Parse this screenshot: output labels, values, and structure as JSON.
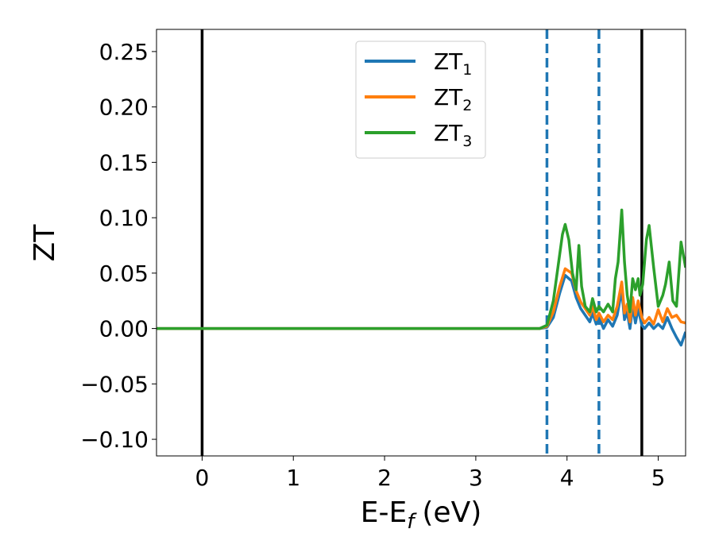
{
  "chart_data": {
    "type": "line",
    "title": "",
    "xlabel": {
      "main": "E-E",
      "sub": "f",
      "unit": "(eV)"
    },
    "ylabel": "ZT",
    "xlim": [
      -0.5,
      5.3
    ],
    "ylim": [
      -0.115,
      0.27
    ],
    "xticks": [
      0,
      1,
      2,
      3,
      4,
      5
    ],
    "xtick_labels": [
      "0",
      "1",
      "2",
      "3",
      "4",
      "5"
    ],
    "yticks": [
      -0.1,
      -0.05,
      0.0,
      0.05,
      0.1,
      0.15,
      0.2,
      0.25
    ],
    "ytick_labels": [
      "−0.10",
      "−0.05",
      "0.00",
      "0.05",
      "0.10",
      "0.15",
      "0.20",
      "0.25"
    ],
    "grid": false,
    "legend_position": "top-center",
    "vlines": [
      {
        "x": 0.0,
        "style": "solid",
        "color": "#000000"
      },
      {
        "x": 4.82,
        "style": "solid",
        "color": "#000000"
      },
      {
        "x": 3.78,
        "style": "dashed",
        "color": "#1f77b4"
      },
      {
        "x": 4.35,
        "style": "dashed",
        "color": "#1f77b4"
      }
    ],
    "series": [
      {
        "name": "ZT",
        "subscript": "1",
        "color": "#1f77b4",
        "x": [
          -0.5,
          3.7,
          3.78,
          3.85,
          3.92,
          3.98,
          4.05,
          4.1,
          4.15,
          4.2,
          4.25,
          4.28,
          4.32,
          4.35,
          4.4,
          4.45,
          4.5,
          4.55,
          4.6,
          4.63,
          4.66,
          4.69,
          4.72,
          4.75,
          4.78,
          4.82,
          4.85,
          4.9,
          4.95,
          5.0,
          5.05,
          5.1,
          5.15,
          5.2,
          5.25,
          5.3
        ],
        "y": [
          0.0,
          0.0,
          0.001,
          0.01,
          0.032,
          0.048,
          0.043,
          0.028,
          0.018,
          0.012,
          0.006,
          0.014,
          0.004,
          0.01,
          0.0,
          0.008,
          0.002,
          0.012,
          0.035,
          0.008,
          0.015,
          0.0,
          0.02,
          0.005,
          0.018,
          0.003,
          0.0,
          0.005,
          0.0,
          0.004,
          0.0,
          0.01,
          0.0,
          -0.008,
          -0.015,
          -0.003
        ]
      },
      {
        "name": "ZT",
        "subscript": "2",
        "color": "#ff7f0e",
        "x": [
          -0.5,
          3.7,
          3.78,
          3.85,
          3.92,
          3.98,
          4.05,
          4.1,
          4.15,
          4.2,
          4.25,
          4.28,
          4.32,
          4.35,
          4.4,
          4.45,
          4.5,
          4.55,
          4.6,
          4.63,
          4.66,
          4.69,
          4.72,
          4.75,
          4.78,
          4.82,
          4.85,
          4.9,
          4.95,
          5.0,
          5.05,
          5.1,
          5.15,
          5.2,
          5.25,
          5.3
        ],
        "y": [
          0.0,
          0.0,
          0.002,
          0.015,
          0.038,
          0.054,
          0.05,
          0.034,
          0.024,
          0.018,
          0.012,
          0.02,
          0.008,
          0.014,
          0.006,
          0.012,
          0.008,
          0.02,
          0.042,
          0.014,
          0.022,
          0.006,
          0.028,
          0.012,
          0.025,
          0.01,
          0.005,
          0.01,
          0.004,
          0.017,
          0.006,
          0.018,
          0.01,
          0.012,
          0.006,
          0.005
        ]
      },
      {
        "name": "ZT",
        "subscript": "3",
        "color": "#2ca02c",
        "x": [
          -0.5,
          3.7,
          3.78,
          3.85,
          3.9,
          3.95,
          3.98,
          4.02,
          4.06,
          4.1,
          4.13,
          4.16,
          4.2,
          4.25,
          4.28,
          4.32,
          4.35,
          4.4,
          4.45,
          4.5,
          4.53,
          4.56,
          4.6,
          4.63,
          4.66,
          4.69,
          4.72,
          4.75,
          4.78,
          4.8,
          4.83,
          4.87,
          4.9,
          4.95,
          5.0,
          5.05,
          5.08,
          5.12,
          5.16,
          5.2,
          5.25,
          5.3
        ],
        "y": [
          0.0,
          0.0,
          0.003,
          0.025,
          0.055,
          0.085,
          0.094,
          0.08,
          0.05,
          0.035,
          0.075,
          0.038,
          0.02,
          0.015,
          0.027,
          0.015,
          0.02,
          0.015,
          0.022,
          0.015,
          0.045,
          0.06,
          0.107,
          0.06,
          0.03,
          0.015,
          0.045,
          0.035,
          0.045,
          0.03,
          0.04,
          0.08,
          0.093,
          0.055,
          0.02,
          0.03,
          0.04,
          0.06,
          0.025,
          0.02,
          0.078,
          0.055
        ]
      }
    ]
  }
}
